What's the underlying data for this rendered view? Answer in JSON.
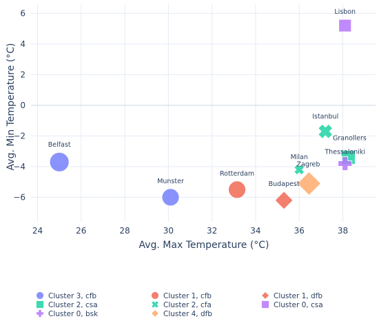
{
  "chart_data": {
    "type": "scatter",
    "xlabel": "Avg. Max Temperature (°C)",
    "ylabel": "Avg. Min Temperature (°C)",
    "xlim": [
      23.7,
      39.5
    ],
    "ylim": [
      -7.6,
      6.6
    ],
    "xticks": [
      24,
      26,
      28,
      30,
      32,
      34,
      36,
      38
    ],
    "yticks": [
      -6,
      -4,
      -2,
      0,
      2,
      4,
      6
    ],
    "grid": true,
    "legend_position": "bottom",
    "series": [
      {
        "name": "Cluster 3, cfb",
        "symbol": "circle",
        "color": "#636efa",
        "points": [
          {
            "label": "Belfast",
            "x": 25.0,
            "y": -3.7,
            "size": 28
          },
          {
            "label": "Munster",
            "x": 30.1,
            "y": -6.0,
            "size": 25
          }
        ]
      },
      {
        "name": "Cluster 1, cfb",
        "symbol": "circle",
        "color": "#ef553b",
        "points": [
          {
            "label": "Rotterdam",
            "x": 33.15,
            "y": -5.5,
            "size": 25
          }
        ]
      },
      {
        "name": "Cluster 1, dfb",
        "symbol": "diamond",
        "color": "#ef553b",
        "points": [
          {
            "label": "Budapest",
            "x": 35.3,
            "y": -6.2,
            "size": 26
          }
        ]
      },
      {
        "name": "Cluster 2, csa",
        "symbol": "square",
        "color": "#00cc96",
        "points": [
          {
            "label": "Granollers",
            "x": 38.25,
            "y": -3.4,
            "size": 20
          }
        ]
      },
      {
        "name": "Cluster 2, cfa",
        "symbol": "x",
        "color": "#00cc96",
        "points": [
          {
            "label": "Istanbul",
            "x": 37.2,
            "y": -1.7,
            "size": 21
          },
          {
            "label": "Milan",
            "x": 36.0,
            "y": -4.2,
            "size": 15
          }
        ]
      },
      {
        "name": "Cluster 0, csa",
        "symbol": "square",
        "color": "#ab63fa",
        "points": [
          {
            "label": "Lisbon",
            "x": 38.1,
            "y": 5.2,
            "size": 18
          }
        ]
      },
      {
        "name": "Cluster 0, bsk",
        "symbol": "cross",
        "color": "#ab63fa",
        "points": [
          {
            "label": "Thessaloniki",
            "x": 38.1,
            "y": -3.8,
            "size": 20
          }
        ]
      },
      {
        "name": "Cluster 4, dfb",
        "symbol": "diamond",
        "color": "#ffa15a",
        "points": [
          {
            "label": "Zagreb",
            "x": 36.45,
            "y": -5.1,
            "size": 34
          }
        ]
      }
    ],
    "legend_order": [
      "Cluster 3, cfb",
      "Cluster 1, cfb",
      "Cluster 1, dfb",
      "Cluster 2, csa",
      "Cluster 2, cfa",
      "Cluster 0, csa",
      "Cluster 0, bsk",
      "Cluster 4, dfb"
    ]
  }
}
